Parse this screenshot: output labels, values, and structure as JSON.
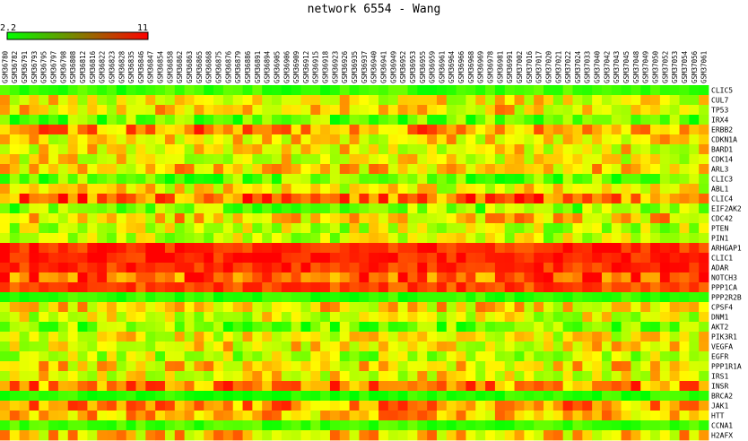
{
  "chart_data": {
    "type": "heatmap",
    "title": "network 6554 - Wang",
    "color_scale": {
      "min": 2.2,
      "max": 11,
      "min_label": "2.2",
      "max_label": "11",
      "low_color": "#00ff00",
      "high_color": "#ff0000"
    },
    "columns": [
      "GSM36780",
      "GSM36782",
      "GSM36791",
      "GSM36793",
      "GSM36795",
      "GSM36797",
      "GSM36798",
      "GSM36808",
      "GSM36812",
      "GSM36816",
      "GSM36822",
      "GSM36823",
      "GSM36828",
      "GSM36835",
      "GSM36846",
      "GSM36847",
      "GSM36854",
      "GSM36858",
      "GSM36862",
      "GSM36863",
      "GSM36865",
      "GSM36868",
      "GSM36875",
      "GSM36876",
      "GSM36879",
      "GSM36886",
      "GSM36891",
      "GSM36894",
      "GSM36905",
      "GSM36906",
      "GSM36909",
      "GSM36912",
      "GSM36915",
      "GSM36918",
      "GSM36923",
      "GSM36926",
      "GSM36935",
      "GSM36937",
      "GSM36940",
      "GSM36941",
      "GSM36949",
      "GSM36952",
      "GSM36953",
      "GSM36955",
      "GSM36959",
      "GSM36961",
      "GSM36964",
      "GSM36966",
      "GSM36968",
      "GSM36969",
      "GSM36978",
      "GSM36981",
      "GSM36991",
      "GSM37002",
      "GSM37016",
      "GSM37017",
      "GSM37020",
      "GSM37021",
      "GSM37022",
      "GSM37024",
      "GSM37033",
      "GSM37040",
      "GSM37042",
      "GSM37043",
      "GSM37045",
      "GSM37048",
      "GSM37049",
      "GSM37050",
      "GSM37052",
      "GSM37053",
      "GSM37054",
      "GSM37056",
      "GSM37061"
    ],
    "rows": [
      "CLIC5",
      "CUL7",
      "TP53",
      "IRX4",
      "ERBB2",
      "CDKN1A",
      "BARD1",
      "CDK14",
      "ARL3",
      "CLIC3",
      "ABL1",
      "CLIC4",
      "EIF2AK2",
      "CDC42",
      "PTEN",
      "PIN1",
      "ARHGAP1",
      "CLIC1",
      "ADAR",
      "NOTCH3",
      "PPP1CA",
      "PPP2R2B",
      "CPSF4",
      "DNM1",
      "AKT2",
      "PIK3R1",
      "VEGFA",
      "EGFR",
      "PPP1R1A",
      "IRS1",
      "INSR",
      "BRCA2",
      "JAK1",
      "HTT",
      "CCNA1",
      "H2AFX"
    ],
    "row_means": [
      3.2,
      6.5,
      7.0,
      3.8,
      8.5,
      6.8,
      6.7,
      6.5,
      7.2,
      3.8,
      6.4,
      9.0,
      4.3,
      7.3,
      5.6,
      5.6,
      10.3,
      10.5,
      10.2,
      9.5,
      9.8,
      3.0,
      7.0,
      6.0,
      4.2,
      6.4,
      6.6,
      5.3,
      7.0,
      6.5,
      8.6,
      2.8,
      8.3,
      7.6,
      3.3,
      7.4
    ]
  }
}
